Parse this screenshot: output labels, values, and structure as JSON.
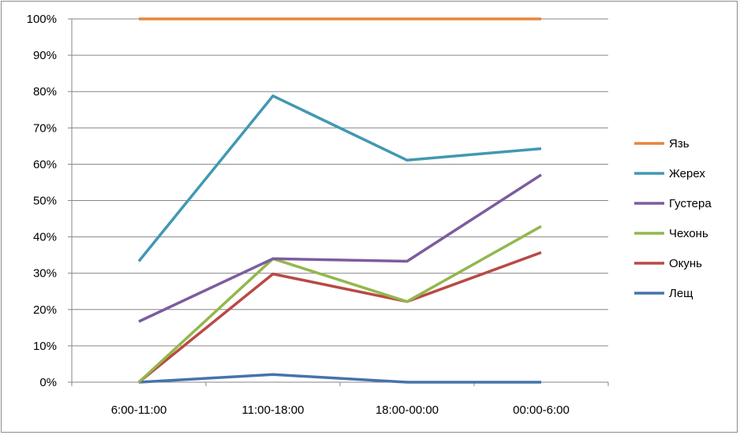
{
  "chart_data": {
    "type": "line",
    "title": "",
    "xlabel": "",
    "ylabel": "",
    "categories": [
      "6:00-11:00",
      "11:00-18:00",
      "18:00-00:00",
      "00:00-6:00"
    ],
    "ylim": [
      0,
      100
    ],
    "y_ticks": [
      "0%",
      "10%",
      "20%",
      "30%",
      "40%",
      "50%",
      "60%",
      "70%",
      "80%",
      "90%",
      "100%"
    ],
    "y_unit": "%",
    "grid": "horizontal",
    "legend_position": "right",
    "series": [
      {
        "name": "Язь",
        "color": "#E9853B",
        "values": [
          100,
          100,
          100,
          100
        ]
      },
      {
        "name": "Жерех",
        "color": "#4298B2",
        "values": [
          33.3,
          78.8,
          61.1,
          64.3
        ]
      },
      {
        "name": "Густера",
        "color": "#7C5C9E",
        "values": [
          16.7,
          34.0,
          33.3,
          57.1
        ]
      },
      {
        "name": "Чехонь",
        "color": "#93B74C",
        "values": [
          0,
          34.0,
          22.2,
          42.9
        ]
      },
      {
        "name": "Окунь",
        "color": "#B84A45",
        "values": [
          0,
          29.8,
          22.2,
          35.7
        ]
      },
      {
        "name": "Лещ",
        "color": "#4673AC",
        "values": [
          0,
          2.1,
          0,
          0
        ]
      }
    ]
  }
}
